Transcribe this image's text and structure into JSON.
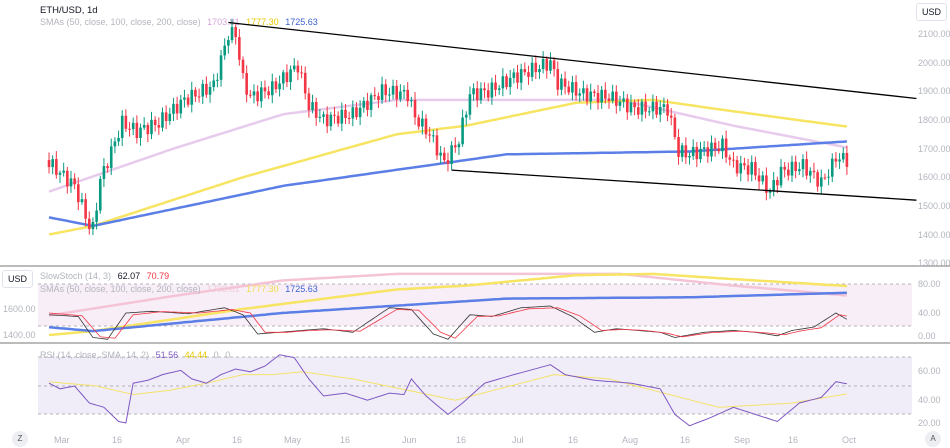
{
  "header": {
    "symbol": "ETH/USD, 1d",
    "currency": "USD"
  },
  "sma_legend": {
    "label": "SMAs (50, close, 100, close, 200, close)",
    "sma50": "1703.81",
    "sma100": "1777.30",
    "sma200": "1725.63"
  },
  "stoch_legend": {
    "label": "SlowStoch (14, 3)",
    "k": "62.07",
    "d": "70.79"
  },
  "stoch_overlay_legend": {
    "label": "SMAs (50, close, 100, close, 200, close)",
    "sma50": "1703.81",
    "sma100": "1777.30",
    "sma200": "1725.63"
  },
  "rsi_legend": {
    "label": "RSI (14, close, SMA, 14, 2)",
    "rsi": "51.56",
    "sma": "44.44",
    "v1": "0",
    "v2": "0"
  },
  "price_axis": [
    "2100.00",
    "2000.00",
    "1900.00",
    "1800.00",
    "1700.00",
    "1600.00",
    "1500.00",
    "1400.00",
    "1300.00"
  ],
  "stoch_axis": [
    "80.00",
    "40.00",
    "0.00"
  ],
  "stoch_left_axis": {
    "currency": "USD",
    "ticks": [
      "1600.00",
      "1400.00"
    ]
  },
  "rsi_axis": [
    "60.00",
    "40.00",
    "20.00"
  ],
  "time_axis": [
    "Mar",
    "16",
    "Apr",
    "16",
    "May",
    "16",
    "Jun",
    "16",
    "Jul",
    "16",
    "Aug",
    "16",
    "Sep",
    "16",
    "Oct"
  ],
  "buttons": {
    "timezone": "Z",
    "auto": "A"
  },
  "colors": {
    "up": "#089981",
    "down": "#f23645",
    "sma50": "#e1bee7",
    "sma100": "#ffeb3b",
    "sma200": "#5b7fe6",
    "rsi": "#7e57c2"
  },
  "chart_data": {
    "type": "candlestick",
    "closes_keypoints": [
      [
        -3,
        1650
      ],
      [
        4,
        1570
      ],
      [
        8,
        1430
      ],
      [
        9,
        1420
      ],
      [
        11,
        1590
      ],
      [
        17,
        1790
      ],
      [
        21,
        1760
      ],
      [
        27,
        1790
      ],
      [
        34,
        1870
      ],
      [
        42,
        1920
      ],
      [
        46,
        2100
      ],
      [
        48,
        2100
      ],
      [
        50,
        1940
      ],
      [
        52,
        1880
      ],
      [
        58,
        1910
      ],
      [
        65,
        1990
      ],
      [
        68,
        1850
      ],
      [
        72,
        1800
      ],
      [
        80,
        1820
      ],
      [
        88,
        1900
      ],
      [
        95,
        1890
      ],
      [
        97,
        1810
      ],
      [
        101,
        1750
      ],
      [
        105,
        1650
      ],
      [
        109,
        1730
      ],
      [
        112,
        1890
      ],
      [
        117,
        1900
      ],
      [
        124,
        1950
      ],
      [
        134,
        2000
      ],
      [
        136,
        1930
      ],
      [
        143,
        1890
      ],
      [
        150,
        1880
      ],
      [
        157,
        1840
      ],
      [
        166,
        1840
      ],
      [
        169,
        1690
      ],
      [
        172,
        1680
      ],
      [
        181,
        1710
      ],
      [
        184,
        1640
      ],
      [
        189,
        1630
      ],
      [
        194,
        1550
      ],
      [
        197,
        1620
      ],
      [
        203,
        1640
      ],
      [
        208,
        1580
      ],
      [
        211,
        1640
      ],
      [
        212,
        1670
      ],
      [
        215,
        1660
      ]
    ],
    "sma50": [
      [
        -3,
        1550
      ],
      [
        31,
        1700
      ],
      [
        61,
        1820
      ],
      [
        92,
        1870
      ],
      [
        153,
        1870
      ],
      [
        184,
        1780
      ],
      [
        215,
        1704
      ]
    ],
    "sma100": [
      [
        -3,
        1400
      ],
      [
        9,
        1430
      ],
      [
        50,
        1600
      ],
      [
        92,
        1750
      ],
      [
        111,
        1780
      ],
      [
        141,
        1860
      ],
      [
        162,
        1870
      ],
      [
        184,
        1830
      ],
      [
        215,
        1777
      ]
    ],
    "sma200": [
      [
        -3,
        1460
      ],
      [
        9,
        1430
      ],
      [
        61,
        1570
      ],
      [
        122,
        1680
      ],
      [
        172,
        1690
      ],
      [
        215,
        1725
      ]
    ],
    "trendlines": [
      {
        "from": [
          46,
          2140
        ],
        "to": [
          234,
          1875
        ]
      },
      {
        "from": [
          107,
          1625
        ],
        "to": [
          234,
          1520
        ]
      }
    ],
    "stoch_k": [
      [
        -3,
        75
      ],
      [
        5,
        70
      ],
      [
        9,
        10
      ],
      [
        13,
        5
      ],
      [
        18,
        80
      ],
      [
        25,
        85
      ],
      [
        35,
        78
      ],
      [
        45,
        95
      ],
      [
        50,
        75
      ],
      [
        54,
        20
      ],
      [
        60,
        25
      ],
      [
        66,
        30
      ],
      [
        72,
        35
      ],
      [
        80,
        25
      ],
      [
        90,
        95
      ],
      [
        96,
        90
      ],
      [
        102,
        20
      ],
      [
        106,
        5
      ],
      [
        112,
        75
      ],
      [
        118,
        70
      ],
      [
        126,
        95
      ],
      [
        134,
        100
      ],
      [
        140,
        70
      ],
      [
        146,
        25
      ],
      [
        152,
        35
      ],
      [
        158,
        30
      ],
      [
        164,
        25
      ],
      [
        168,
        10
      ],
      [
        176,
        25
      ],
      [
        184,
        30
      ],
      [
        190,
        25
      ],
      [
        196,
        15
      ],
      [
        200,
        30
      ],
      [
        206,
        40
      ],
      [
        212,
        80
      ],
      [
        215,
        62
      ]
    ],
    "stoch_d": [
      [
        -3,
        80
      ],
      [
        6,
        72
      ],
      [
        11,
        12
      ],
      [
        15,
        8
      ],
      [
        20,
        75
      ],
      [
        28,
        84
      ],
      [
        38,
        80
      ],
      [
        47,
        90
      ],
      [
        52,
        80
      ],
      [
        56,
        25
      ],
      [
        62,
        25
      ],
      [
        68,
        30
      ],
      [
        74,
        32
      ],
      [
        82,
        28
      ],
      [
        92,
        90
      ],
      [
        98,
        88
      ],
      [
        104,
        25
      ],
      [
        108,
        8
      ],
      [
        114,
        70
      ],
      [
        120,
        72
      ],
      [
        128,
        92
      ],
      [
        136,
        95
      ],
      [
        142,
        72
      ],
      [
        148,
        30
      ],
      [
        154,
        33
      ],
      [
        160,
        30
      ],
      [
        166,
        22
      ],
      [
        170,
        12
      ],
      [
        178,
        24
      ],
      [
        186,
        28
      ],
      [
        192,
        24
      ],
      [
        198,
        18
      ],
      [
        202,
        28
      ],
      [
        208,
        38
      ],
      [
        213,
        75
      ],
      [
        215,
        71
      ]
    ],
    "rsi": [
      [
        -3,
        52
      ],
      [
        0,
        48
      ],
      [
        4,
        50
      ],
      [
        8,
        38
      ],
      [
        12,
        35
      ],
      [
        16,
        25
      ],
      [
        18,
        24
      ],
      [
        20,
        52
      ],
      [
        24,
        54
      ],
      [
        28,
        58
      ],
      [
        33,
        61
      ],
      [
        36,
        55
      ],
      [
        40,
        52
      ],
      [
        44,
        58
      ],
      [
        48,
        62
      ],
      [
        52,
        60
      ],
      [
        56,
        64
      ],
      [
        60,
        72
      ],
      [
        64,
        70
      ],
      [
        68,
        55
      ],
      [
        72,
        43
      ],
      [
        78,
        45
      ],
      [
        84,
        40
      ],
      [
        90,
        45
      ],
      [
        94,
        44
      ],
      [
        96,
        55
      ],
      [
        100,
        43
      ],
      [
        106,
        30
      ],
      [
        110,
        38
      ],
      [
        116,
        52
      ],
      [
        124,
        58
      ],
      [
        134,
        65
      ],
      [
        138,
        58
      ],
      [
        146,
        54
      ],
      [
        156,
        52
      ],
      [
        164,
        48
      ],
      [
        168,
        30
      ],
      [
        172,
        22
      ],
      [
        178,
        28
      ],
      [
        184,
        35
      ],
      [
        190,
        30
      ],
      [
        196,
        25
      ],
      [
        202,
        38
      ],
      [
        208,
        42
      ],
      [
        212,
        53
      ],
      [
        215,
        51.56
      ]
    ],
    "rsi_sma": [
      [
        -3,
        53
      ],
      [
        10,
        50
      ],
      [
        20,
        44
      ],
      [
        30,
        47
      ],
      [
        40,
        52
      ],
      [
        50,
        58
      ],
      [
        58,
        58
      ],
      [
        66,
        60
      ],
      [
        80,
        55
      ],
      [
        95,
        47
      ],
      [
        108,
        40
      ],
      [
        120,
        48
      ],
      [
        135,
        58
      ],
      [
        150,
        55
      ],
      [
        165,
        45
      ],
      [
        180,
        35
      ],
      [
        200,
        38
      ],
      [
        215,
        44.44
      ]
    ]
  }
}
